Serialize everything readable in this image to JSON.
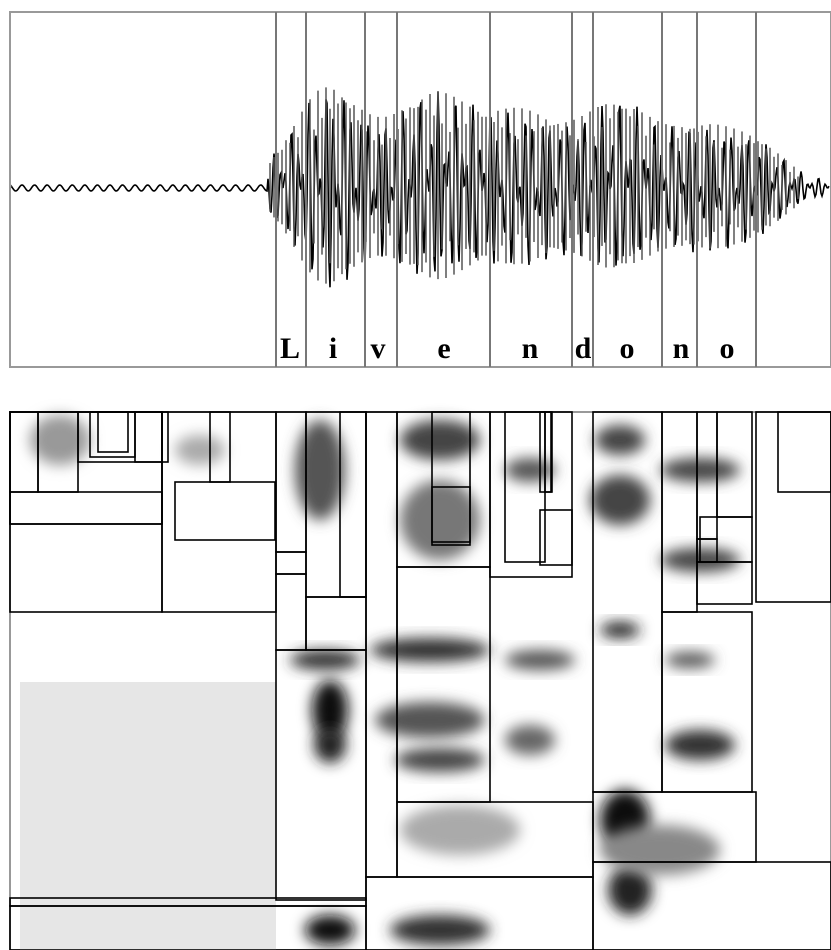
{
  "labels": [
    "L",
    "i",
    "v",
    "e",
    "n",
    "d",
    "o",
    "n",
    "o"
  ]
}
